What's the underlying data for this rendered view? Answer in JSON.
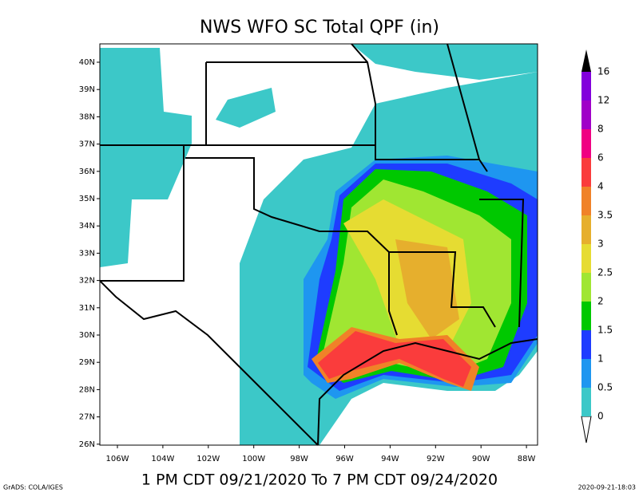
{
  "header": {
    "title": "NWS WFO SC Total QPF (in)"
  },
  "map": {
    "lat_labels": [
      "40N",
      "39N",
      "38N",
      "37N",
      "36N",
      "35N",
      "34N",
      "33N",
      "32N",
      "31N",
      "30N",
      "29N",
      "28N",
      "27N",
      "26N"
    ],
    "lon_labels": [
      "106W",
      "104W",
      "102W",
      "100W",
      "98W",
      "96W",
      "94W",
      "92W",
      "90W",
      "88W"
    ]
  },
  "colorbar": {
    "levels": [
      0,
      0.5,
      1,
      1.5,
      2,
      2.5,
      3,
      3.5,
      4,
      6,
      8,
      12,
      16
    ],
    "colors": [
      "#3cc8c8",
      "#1e96f0",
      "#1e3cff",
      "#00c800",
      "#a0e632",
      "#e6dc32",
      "#e6af2d",
      "#f08228",
      "#fa3c3c",
      "#f00082",
      "#a000c8",
      "#8200dc"
    ]
  },
  "footer": {
    "period": "1 PM CDT 09/21/2020 To 7 PM CDT 09/24/2020",
    "left": "GrADS: COLA/IGES",
    "right": "2020-09-21-18:03"
  }
}
